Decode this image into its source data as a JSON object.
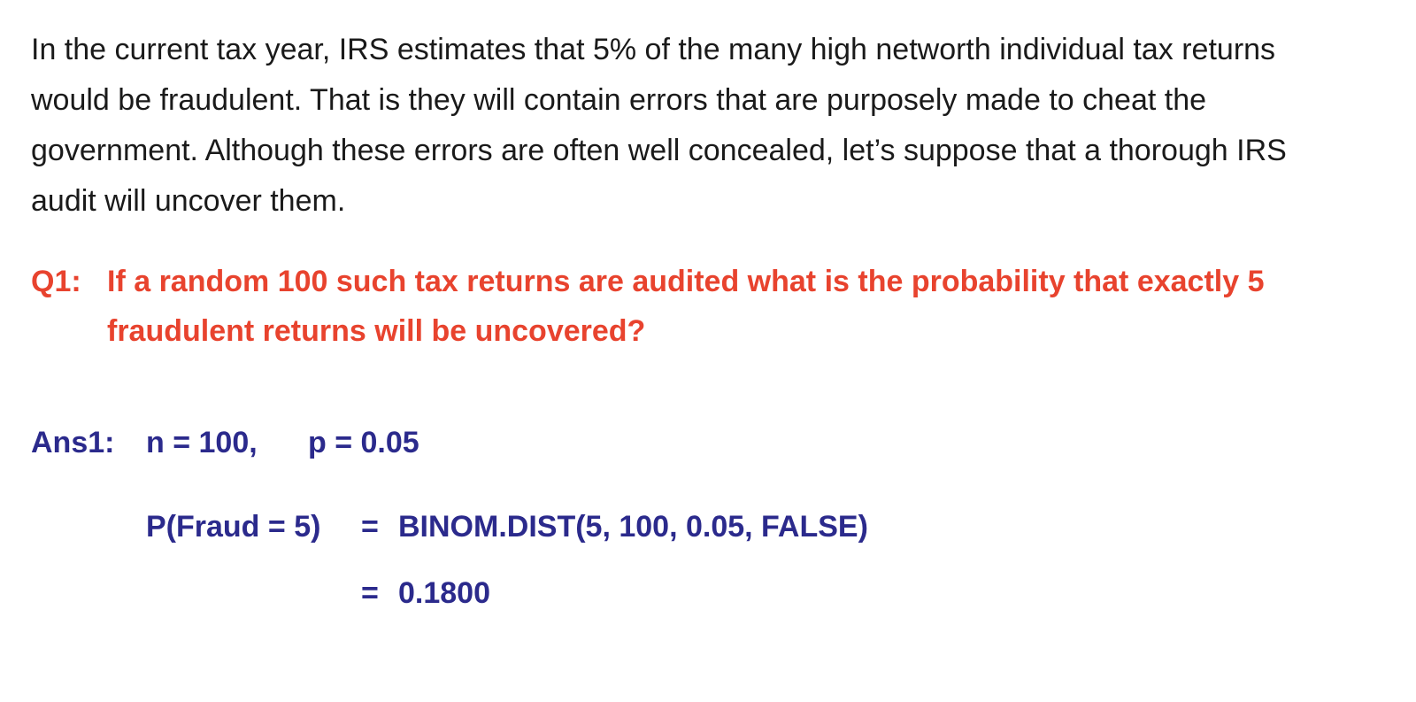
{
  "colors": {
    "body_text": "#1a1a1a",
    "question": "#e8432e",
    "answer": "#2b2a8c"
  },
  "intro": {
    "text": "In the current tax year, IRS estimates that 5% of the many high networth individual tax returns would be fraudulent. That is they will contain errors that are purposely made to cheat the government. Although these errors are often well concealed, let’s suppose that a thorough IRS audit will uncover them."
  },
  "question": {
    "prefix": "Q1:",
    "text": "If a random 100 such tax returns are audited what is the probability that exactly 5 fraudulent returns will be uncovered?"
  },
  "answer": {
    "label": "Ans1:",
    "n": "n = 100,",
    "p": "p = 0.05",
    "prob_label": "P(Fraud = 5)",
    "equals_1": "=",
    "formula": "BINOM.DIST(5, 100, 0.05, FALSE)",
    "equals_2": "=",
    "result": "0.1800"
  }
}
